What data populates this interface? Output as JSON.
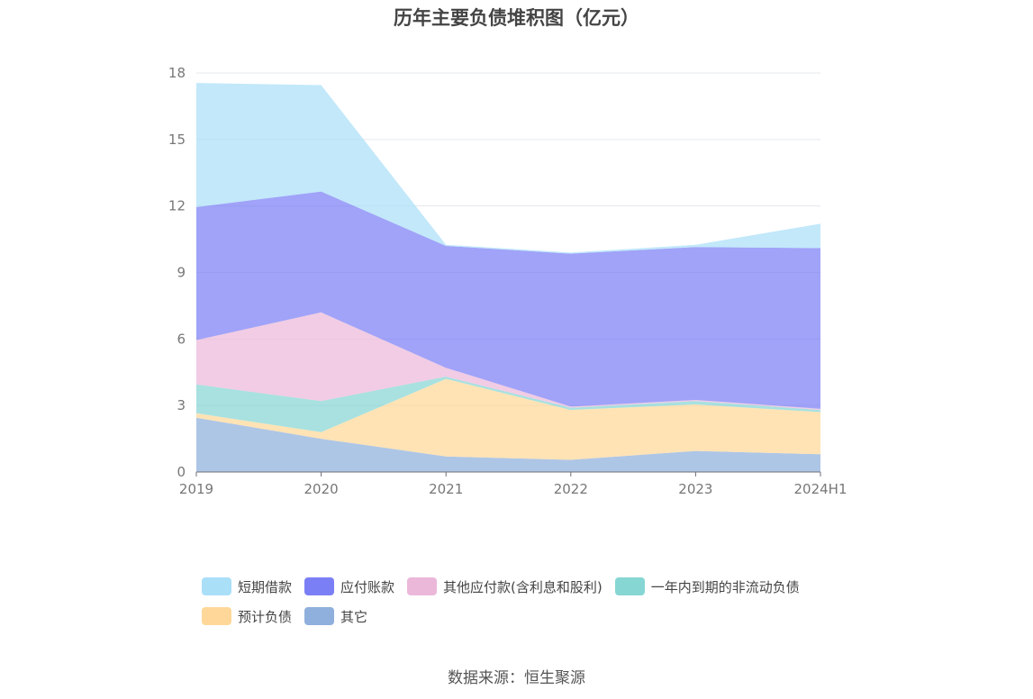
{
  "chart_data": {
    "type": "area",
    "stacked": true,
    "title": "历年主要负债堆积图（亿元）",
    "x": [
      "2019",
      "2020",
      "2021",
      "2022",
      "2023",
      "2024H1"
    ],
    "ylim": [
      0,
      18
    ],
    "yticks": [
      0,
      3,
      6,
      9,
      12,
      15,
      18
    ],
    "grid": true,
    "legend_position": "bottom",
    "series": [
      {
        "name": "其它",
        "color": "#8fb0dc",
        "values": [
          2.45,
          1.5,
          0.7,
          0.55,
          0.95,
          0.8
        ]
      },
      {
        "name": "预计负债",
        "color": "#ffd899",
        "values": [
          0.2,
          0.3,
          3.5,
          2.25,
          2.1,
          1.9
        ]
      },
      {
        "name": "一年内到期的非流动负债",
        "color": "#86d6d4",
        "values": [
          1.3,
          1.4,
          0.1,
          0.1,
          0.15,
          0.1
        ]
      },
      {
        "name": "其他应付款(含利息和股利)",
        "color": "#ebb8da",
        "values": [
          2.0,
          4.0,
          0.4,
          0.05,
          0.05,
          0.05
        ]
      },
      {
        "name": "应付账款",
        "color": "#7b7ff5",
        "values": [
          6.0,
          5.45,
          5.5,
          6.9,
          6.9,
          7.25
        ]
      },
      {
        "name": "短期借款",
        "color": "#aadff8",
        "values": [
          5.6,
          4.8,
          0.05,
          0.05,
          0.1,
          1.1
        ]
      }
    ]
  },
  "legend": {
    "items": [
      {
        "label": "短期借款",
        "color": "#aadff8"
      },
      {
        "label": "应付账款",
        "color": "#7b7ff5"
      },
      {
        "label": "其他应付款(含利息和股利)",
        "color": "#ebb8da"
      },
      {
        "label": "一年内到期的非流动负债",
        "color": "#86d6d4"
      },
      {
        "label": "预计负债",
        "color": "#ffd899"
      },
      {
        "label": "其它",
        "color": "#8fb0dc"
      }
    ]
  },
  "source": "数据来源：恒生聚源"
}
